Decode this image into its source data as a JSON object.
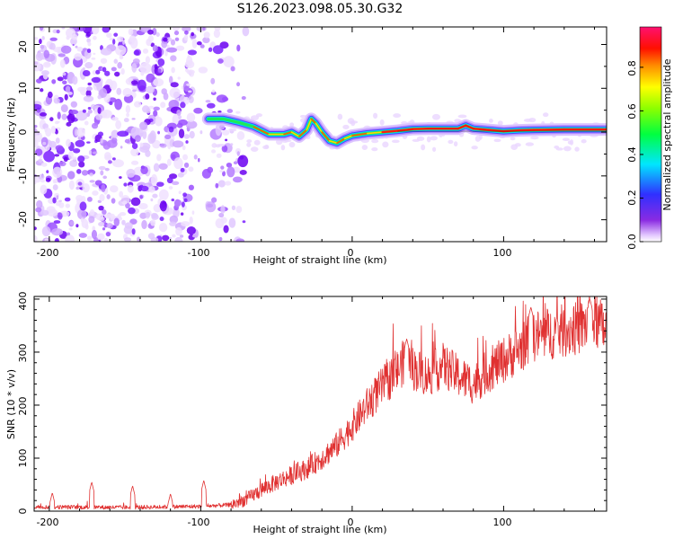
{
  "title": "S126.2023.098.05.30.G32",
  "chart_data": [
    {
      "type": "heatmap",
      "title": "",
      "xlabel": "Height of straight line (km)",
      "ylabel": "Frequency (Hz)",
      "xlim": [
        -210,
        168
      ],
      "ylim": [
        -25,
        24
      ],
      "x_ticks": [
        "-200",
        "-100",
        "0",
        "100"
      ],
      "y_ticks": [
        "20",
        "10",
        "0",
        "-10",
        "-20"
      ],
      "colorbar": {
        "label": "Normalized spectral amplitude",
        "range": [
          0,
          1
        ],
        "ticks": [
          "0.0",
          "0.2",
          "0.4",
          "0.6",
          "0.8"
        ],
        "colormap": "rainbow (purple-blue-cyan-green-yellow-orange-red-magenta)"
      },
      "signal_ridge": {
        "description": "narrow-band signal near 0 Hz, amplitude rising with height",
        "x": [
          -95,
          -85,
          -75,
          -65,
          -55,
          -45,
          -40,
          -35,
          -30,
          -27,
          -24,
          -20,
          -15,
          -10,
          -5,
          0,
          10,
          20,
          30,
          40,
          50,
          60,
          70,
          75,
          80,
          90,
          100,
          110,
          120,
          140,
          168
        ],
        "frequency": [
          3,
          3,
          2.2,
          1.2,
          -0.5,
          -0.5,
          0,
          -1,
          0.5,
          3,
          2,
          0,
          -2,
          -2.5,
          -1.5,
          -0.8,
          -0.3,
          0,
          0.3,
          0.7,
          0.8,
          0.8,
          0.8,
          1.5,
          0.8,
          0.5,
          0.2,
          0.4,
          0.5,
          0.6,
          0.6
        ]
      },
      "noise_region": {
        "x_range": [
          -210,
          -80
        ],
        "description": "scattered purple noise blobs"
      }
    },
    {
      "type": "line",
      "title": "",
      "xlabel": "Height of straight line (km)",
      "ylabel": "SNR (10 * v/v)",
      "xlim": [
        -210,
        168
      ],
      "ylim": [
        0,
        405
      ],
      "x_ticks": [
        "-200",
        "-100",
        "0",
        "100"
      ],
      "y_ticks": [
        "0",
        "100",
        "200",
        "300",
        "400"
      ],
      "color": "#e03030",
      "trend": {
        "x": [
          -210,
          -150,
          -100,
          -80,
          -70,
          -60,
          -50,
          -40,
          -30,
          -20,
          -10,
          0,
          10,
          20,
          30,
          35,
          40,
          50,
          60,
          70,
          80,
          90,
          100,
          110,
          120,
          130,
          140,
          150,
          160,
          168
        ],
        "y": [
          8,
          7,
          9,
          12,
          22,
          40,
          55,
          68,
          80,
          100,
          125,
          160,
          200,
          235,
          265,
          285,
          270,
          255,
          275,
          255,
          240,
          265,
          285,
          305,
          330,
          335,
          340,
          345,
          360,
          340
        ]
      },
      "spikes": [
        {
          "x": -198,
          "y": 35
        },
        {
          "x": -172,
          "y": 55
        },
        {
          "x": -145,
          "y": 48
        },
        {
          "x": -120,
          "y": 33
        },
        {
          "x": -98,
          "y": 58
        },
        {
          "x": 36,
          "y": 325
        },
        {
          "x": 118,
          "y": 385
        },
        {
          "x": 157,
          "y": 400
        }
      ]
    }
  ]
}
